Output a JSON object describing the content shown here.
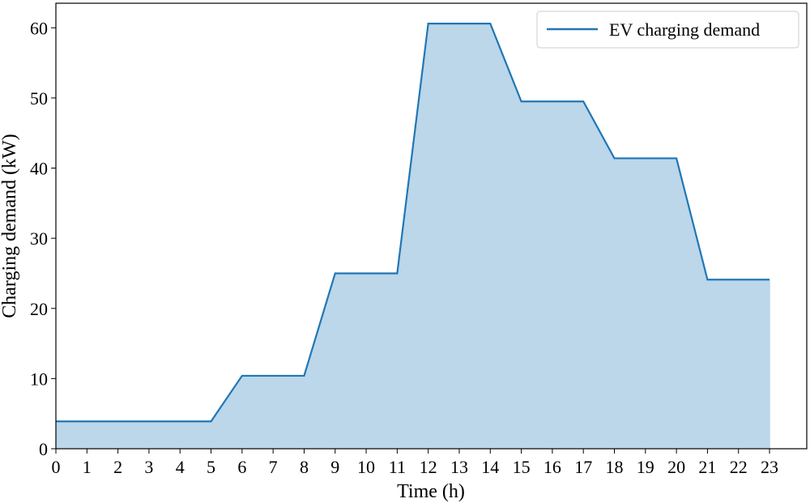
{
  "chart_data": {
    "type": "area",
    "title": "",
    "xlabel": "Time (h)",
    "ylabel": "Charging demand (kW)",
    "x": [
      0,
      1,
      2,
      3,
      4,
      5,
      6,
      7,
      8,
      9,
      10,
      11,
      12,
      13,
      14,
      15,
      16,
      17,
      18,
      19,
      20,
      21,
      22,
      23
    ],
    "xticks": [
      "0",
      "1",
      "2",
      "3",
      "4",
      "5",
      "6",
      "7",
      "8",
      "9",
      "10",
      "11",
      "12",
      "13",
      "14",
      "15",
      "16",
      "17",
      "18",
      "19",
      "20",
      "21",
      "22",
      "23"
    ],
    "yticks": [
      "0",
      "10",
      "20",
      "30",
      "40",
      "50",
      "60"
    ],
    "xlim": [
      0,
      24.2
    ],
    "ylim": [
      0,
      63.5
    ],
    "grid": false,
    "legend_position": "top-right",
    "series": [
      {
        "name": "EV charging demand",
        "values": [
          3.9,
          3.9,
          3.9,
          3.9,
          3.9,
          3.9,
          10.4,
          10.4,
          10.4,
          25.0,
          25.0,
          25.0,
          60.6,
          60.6,
          60.6,
          49.5,
          49.5,
          49.5,
          41.4,
          41.4,
          41.4,
          24.1,
          24.1,
          24.1
        ],
        "line_color": "#1f77b4",
        "fill_color": "#bcd6ea"
      }
    ]
  }
}
